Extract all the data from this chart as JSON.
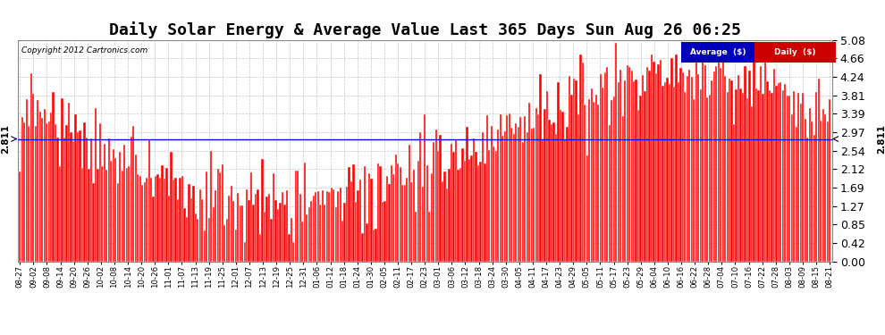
{
  "title": "Daily Solar Energy & Average Value Last 365 Days Sun Aug 26 06:25",
  "copyright": "Copyright 2012 Cartronics.com",
  "average_value": 2.811,
  "ylim": [
    0.0,
    5.08
  ],
  "yticks": [
    0.0,
    0.42,
    0.85,
    1.27,
    1.69,
    2.12,
    2.54,
    2.97,
    3.39,
    3.81,
    4.24,
    4.66,
    5.08
  ],
  "bar_color": "#FF0000",
  "bar_edge_color": "#FFFFFF",
  "avg_line_color": "#0000FF",
  "background_color": "#FFFFFF",
  "plot_bg_color": "#FFFFFF",
  "grid_color": "#BBBBBB",
  "title_fontsize": 13,
  "legend_avg_bg": "#0000CC",
  "legend_daily_bg": "#CC0000",
  "n_days": 365,
  "x_tick_labels": [
    "08-27",
    "09-02",
    "09-08",
    "09-14",
    "09-20",
    "09-26",
    "10-02",
    "10-08",
    "10-14",
    "10-20",
    "10-26",
    "11-01",
    "11-07",
    "11-13",
    "11-19",
    "11-25",
    "12-01",
    "12-07",
    "12-13",
    "12-19",
    "12-25",
    "12-31",
    "01-06",
    "01-12",
    "01-18",
    "01-24",
    "01-30",
    "02-05",
    "02-11",
    "02-17",
    "02-23",
    "03-01",
    "03-06",
    "03-12",
    "03-18",
    "03-24",
    "03-30",
    "04-05",
    "04-11",
    "04-17",
    "04-23",
    "04-29",
    "05-05",
    "05-11",
    "05-17",
    "05-23",
    "05-29",
    "06-04",
    "06-10",
    "06-16",
    "06-22",
    "06-28",
    "07-04",
    "07-10",
    "07-16",
    "07-22",
    "07-28",
    "08-03",
    "08-09",
    "08-15",
    "08-21"
  ],
  "seed": 42
}
